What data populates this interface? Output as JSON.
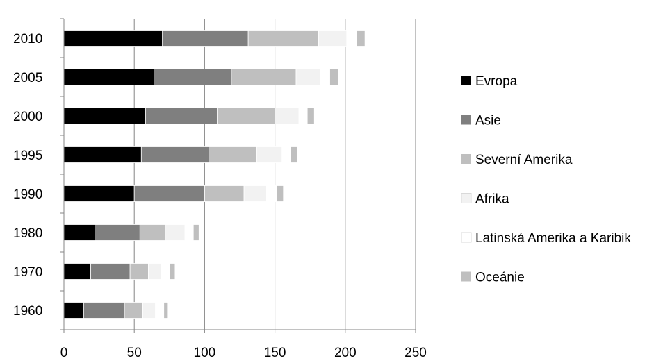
{
  "chart_data": {
    "type": "bar",
    "orientation": "horizontal",
    "stacked": true,
    "categories": [
      "2010",
      "2005",
      "2000",
      "1995",
      "1990",
      "1980",
      "1970",
      "1960"
    ],
    "xlim": [
      0,
      250
    ],
    "xticks": [
      "0",
      "50",
      "100",
      "150",
      "200",
      "250"
    ],
    "grid": "vertical",
    "legend_position": "right",
    "series": [
      {
        "name": "Evropa",
        "color": "#000000",
        "values": [
          70,
          64,
          58,
          55,
          50,
          22,
          19,
          14
        ]
      },
      {
        "name": "Asie",
        "color": "#7f7f7f",
        "values": [
          61,
          55,
          51,
          48,
          50,
          32,
          28,
          29
        ]
      },
      {
        "name": "Severní Amerika",
        "color": "#bfbfbf",
        "values": [
          50,
          46,
          41,
          34,
          28,
          18,
          13,
          13
        ]
      },
      {
        "name": "Afrika",
        "color": "#f2f2f2",
        "values": [
          20,
          17,
          17,
          18,
          16,
          14,
          9,
          9
        ]
      },
      {
        "name": "Latinská Amerika a Karibik",
        "color": "#ffffff",
        "values": [
          7,
          7,
          6,
          6,
          7,
          6,
          6,
          6
        ]
      },
      {
        "name": "Oceánie",
        "color": "#bfbfbf",
        "values": [
          6,
          6,
          5,
          5,
          5,
          4,
          4,
          3
        ]
      }
    ]
  }
}
